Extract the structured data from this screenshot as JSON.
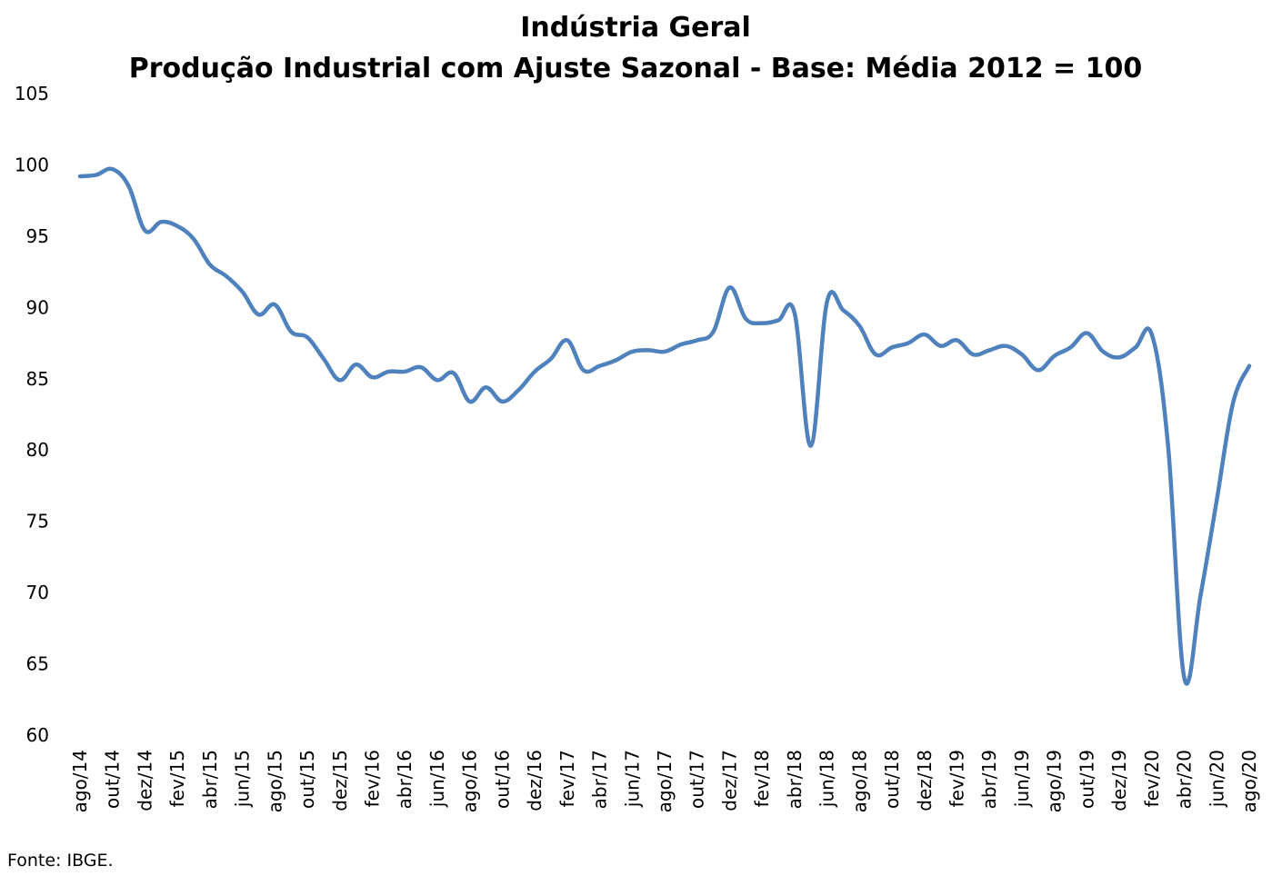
{
  "source": "Fonte: IBGE.",
  "chart_data": {
    "type": "line",
    "title": "Indústria Geral",
    "subtitle": "Produção Industrial com Ajuste Sazonal - Base: Média 2012 = 100",
    "xlabel": "",
    "ylabel": "",
    "ylim": [
      60,
      105
    ],
    "yticks": [
      60,
      65,
      70,
      75,
      80,
      85,
      90,
      95,
      100,
      105
    ],
    "grid": false,
    "legend": "none",
    "line_color": "#4F81BD",
    "x_tick_labels": [
      "ago/14",
      "out/14",
      "dez/14",
      "fev/15",
      "abr/15",
      "jun/15",
      "ago/15",
      "out/15",
      "dez/15",
      "fev/16",
      "abr/16",
      "jun/16",
      "ago/16",
      "out/16",
      "dez/16",
      "fev/17",
      "abr/17",
      "jun/17",
      "ago/17",
      "out/17",
      "dez/17",
      "fev/18",
      "abr/18",
      "jun/18",
      "ago/18",
      "out/18",
      "dez/18",
      "fev/19",
      "abr/19",
      "jun/19",
      "ago/19",
      "out/19",
      "dez/19",
      "fev/20",
      "abr/20",
      "jun/20",
      "ago/20"
    ],
    "x": [
      "ago/14",
      "set/14",
      "out/14",
      "nov/14",
      "dez/14",
      "jan/15",
      "fev/15",
      "mar/15",
      "abr/15",
      "mai/15",
      "jun/15",
      "jul/15",
      "ago/15",
      "set/15",
      "out/15",
      "nov/15",
      "dez/15",
      "jan/16",
      "fev/16",
      "mar/16",
      "abr/16",
      "mai/16",
      "jun/16",
      "jul/16",
      "ago/16",
      "set/16",
      "out/16",
      "nov/16",
      "dez/16",
      "jan/17",
      "fev/17",
      "mar/17",
      "abr/17",
      "mai/17",
      "jun/17",
      "jul/17",
      "ago/17",
      "set/17",
      "out/17",
      "nov/17",
      "dez/17",
      "jan/18",
      "fev/18",
      "mar/18",
      "abr/18",
      "mai/18",
      "jun/18",
      "jul/18",
      "ago/18",
      "set/18",
      "out/18",
      "nov/18",
      "dez/18",
      "jan/19",
      "fev/19",
      "mar/19",
      "abr/19",
      "mai/19",
      "jun/19",
      "jul/19",
      "ago/19",
      "set/19",
      "out/19",
      "nov/19",
      "dez/19",
      "jan/20",
      "fev/20",
      "mar/20",
      "abr/20",
      "mai/20",
      "jun/20",
      "jul/20",
      "ago/20"
    ],
    "series": [
      {
        "values": [
          99.2,
          99.3,
          99.7,
          98.5,
          95.4,
          96.0,
          95.7,
          94.8,
          93.0,
          92.2,
          91.1,
          89.5,
          90.2,
          88.3,
          87.9,
          86.4,
          84.9,
          86.0,
          85.1,
          85.5,
          85.5,
          85.8,
          84.9,
          85.4,
          83.4,
          84.4,
          83.4,
          84.2,
          85.5,
          86.4,
          87.7,
          85.6,
          85.9,
          86.3,
          86.9,
          87.0,
          86.9,
          87.4,
          87.7,
          88.3,
          91.4,
          89.2,
          88.9,
          89.1,
          89.6,
          80.3,
          90.4,
          89.8,
          88.7,
          86.7,
          87.2,
          87.5,
          88.1,
          87.3,
          87.7,
          86.7,
          87.0,
          87.3,
          86.7,
          85.6,
          86.6,
          87.2,
          88.2,
          86.9,
          86.5,
          87.2,
          88.1,
          80.3,
          64.0,
          69.8,
          76.5,
          83.3,
          85.9
        ]
      }
    ]
  }
}
